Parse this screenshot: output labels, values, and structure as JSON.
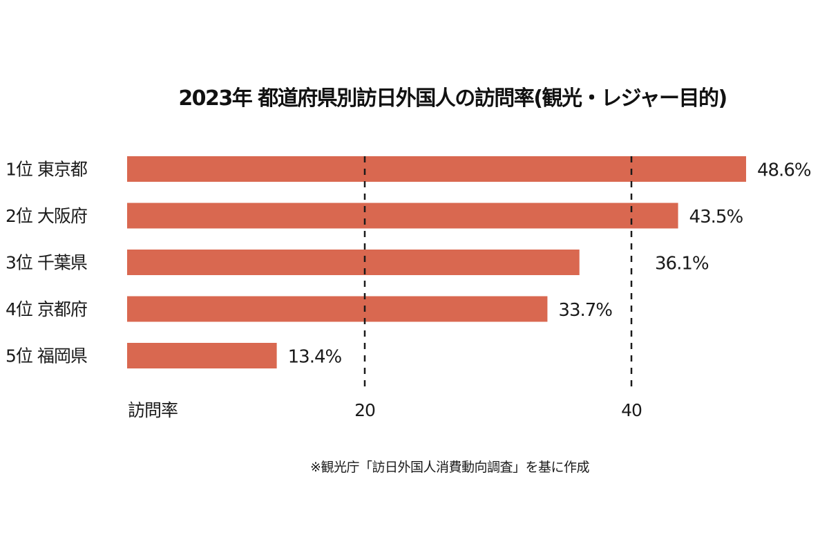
{
  "chart_data": {
    "type": "bar",
    "orientation": "horizontal",
    "title": "2023年 都道府県別訪日外国人の訪問率(観光・レジャー目的)",
    "categories": [
      "1位 東京都",
      "2位 大阪府",
      "3位 千葉県",
      "4位 京都府",
      "5位 福岡県"
    ],
    "values": [
      48.6,
      43.5,
      36.1,
      33.7,
      13.4
    ],
    "value_labels": [
      "48.6%",
      "43.5%",
      "36.1%",
      "33.7%",
      "13.4%"
    ],
    "xlabel": "訪問率",
    "xticks": [
      20,
      40
    ],
    "xtick_labels": [
      "20",
      "40"
    ],
    "xlim": [
      0,
      50
    ],
    "grid": "dashed vertical lines at ticks",
    "bar_color": "#D96850",
    "note": "※観光庁「訪日外国人消費動向調査」を基に作成"
  }
}
